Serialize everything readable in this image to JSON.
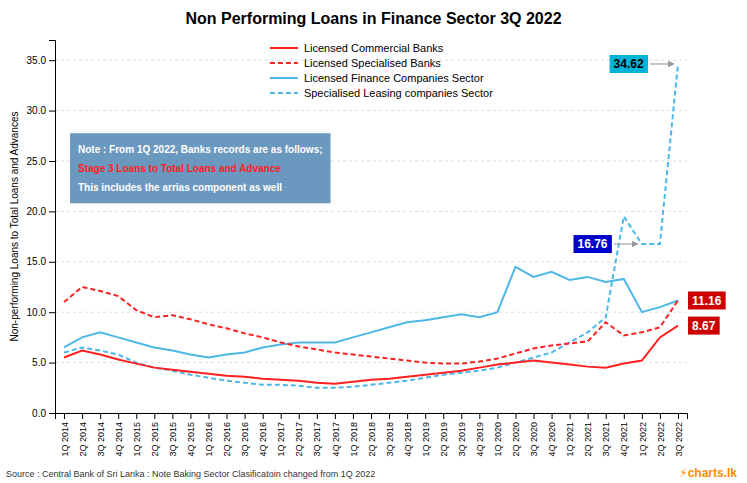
{
  "chart_data": {
    "type": "line",
    "title": "Non Performing Loans in Finance Sector 3Q 2022",
    "y_label": "Non-performing Loans to Total Loans and Advances",
    "categories": [
      "1Q 2014",
      "2Q 2014",
      "3Q 2014",
      "4Q 2014",
      "1Q 2015",
      "2Q 2015",
      "3Q 2015",
      "4Q 2015",
      "1Q 2016",
      "2Q 2016",
      "3Q 2016",
      "4Q 2016",
      "1Q 2017",
      "2Q 2017",
      "3Q 2017",
      "4Q 2017",
      "1Q 2018",
      "2Q 2018",
      "3Q 2018",
      "4Q 2018",
      "1Q 2019",
      "2Q 2019",
      "3Q 2019",
      "4Q 2019",
      "1Q 2020",
      "2Q 2020",
      "3Q 2020",
      "4Q 2020",
      "1Q 2021",
      "2Q 2021",
      "3Q 2021",
      "4Q 2021",
      "1Q 2022",
      "2Q 2022",
      "3Q 2022"
    ],
    "series": [
      {
        "name": "Licensed Commercial Banks",
        "color": "#ff2020",
        "line_style": "solid",
        "values": [
          5.5,
          6.2,
          5.8,
          5.3,
          4.9,
          4.5,
          4.3,
          4.1,
          3.9,
          3.7,
          3.6,
          3.4,
          3.3,
          3.2,
          3.0,
          2.9,
          3.1,
          3.3,
          3.4,
          3.6,
          3.8,
          4.0,
          4.2,
          4.5,
          4.8,
          5.0,
          5.2,
          5.0,
          4.8,
          4.6,
          4.5,
          4.9,
          5.2,
          7.5,
          8.67
        ]
      },
      {
        "name": "Licensed Specialised Banks",
        "color": "#ff2020",
        "line_style": "dashed",
        "values": [
          11.0,
          12.5,
          12.1,
          11.6,
          10.2,
          9.5,
          9.7,
          9.3,
          8.8,
          8.4,
          7.9,
          7.5,
          7.0,
          6.6,
          6.3,
          6.0,
          5.8,
          5.6,
          5.4,
          5.2,
          5.0,
          4.9,
          4.9,
          5.1,
          5.4,
          5.9,
          6.4,
          6.7,
          6.9,
          7.1,
          9.0,
          7.7,
          8.0,
          8.5,
          11.16
        ]
      },
      {
        "name": "Licensed Finance Companies Sector",
        "color": "#4db8e8",
        "line_style": "solid",
        "values": [
          6.5,
          7.5,
          8.0,
          7.5,
          7.0,
          6.5,
          6.2,
          5.8,
          5.5,
          5.8,
          6.0,
          6.5,
          6.8,
          7.0,
          7.0,
          7.0,
          7.5,
          8.0,
          8.5,
          9.0,
          9.2,
          9.5,
          9.8,
          9.5,
          10.0,
          14.5,
          13.5,
          14.0,
          13.2,
          13.5,
          13.0,
          13.3,
          10.0,
          10.5,
          11.16
        ]
      },
      {
        "name": "Specialised Leasing companies Sector",
        "color": "#4db8e8",
        "line_style": "dashed",
        "values": [
          6.0,
          6.5,
          6.2,
          5.8,
          5.0,
          4.5,
          4.2,
          3.8,
          3.5,
          3.2,
          3.0,
          2.8,
          2.8,
          2.7,
          2.5,
          2.5,
          2.6,
          2.8,
          3.0,
          3.2,
          3.5,
          3.8,
          4.0,
          4.2,
          4.5,
          5.0,
          5.5,
          6.0,
          7.0,
          8.0,
          9.5,
          19.5,
          16.76,
          16.76,
          34.62
        ]
      }
    ],
    "ylim": [
      0.0,
      37.0
    ],
    "yticks": [
      {
        "value": 0,
        "label": "0.0"
      },
      {
        "value": 5,
        "label": "5.0"
      },
      {
        "value": 10,
        "label": "10.0"
      },
      {
        "value": 15,
        "label": "15.0"
      },
      {
        "value": 20,
        "label": "20.0"
      },
      {
        "value": 25,
        "label": "25.0"
      },
      {
        "value": 30,
        "label": "30.0"
      },
      {
        "value": 35,
        "label": "35.0"
      }
    ],
    "grid": true,
    "legend": "top",
    "annotations": [
      {
        "text": "34.62",
        "x": "3Q 2022",
        "y": 34.62,
        "color": "#00b4d8"
      },
      {
        "text": "16.76",
        "x": "1Q 2022",
        "y": 16.76,
        "color": "#0000cc"
      },
      {
        "text": "11.16",
        "x": "3Q 2022",
        "y": 11.16,
        "color": "#cc0000"
      },
      {
        "text": "8.67",
        "x": "3Q 2022",
        "y": 8.67,
        "color": "#cc0000"
      },
      {
        "text": "Note : From 1Q 2022, Banks records are as follows;",
        "color": "#ffffff"
      },
      {
        "text": "Stage 3 Loans to Total Loans and Advance",
        "color": "#ff2020"
      },
      {
        "text": "This includes the arrias component as well",
        "color": "#ffffff"
      },
      {
        "text": "Source : Central Bank of Sri Lanka : Note Baking Sector Clasificatoin changed from 1Q 2022"
      },
      {
        "text": "⚡charts.lk",
        "color": "#ff8c00"
      }
    ]
  }
}
